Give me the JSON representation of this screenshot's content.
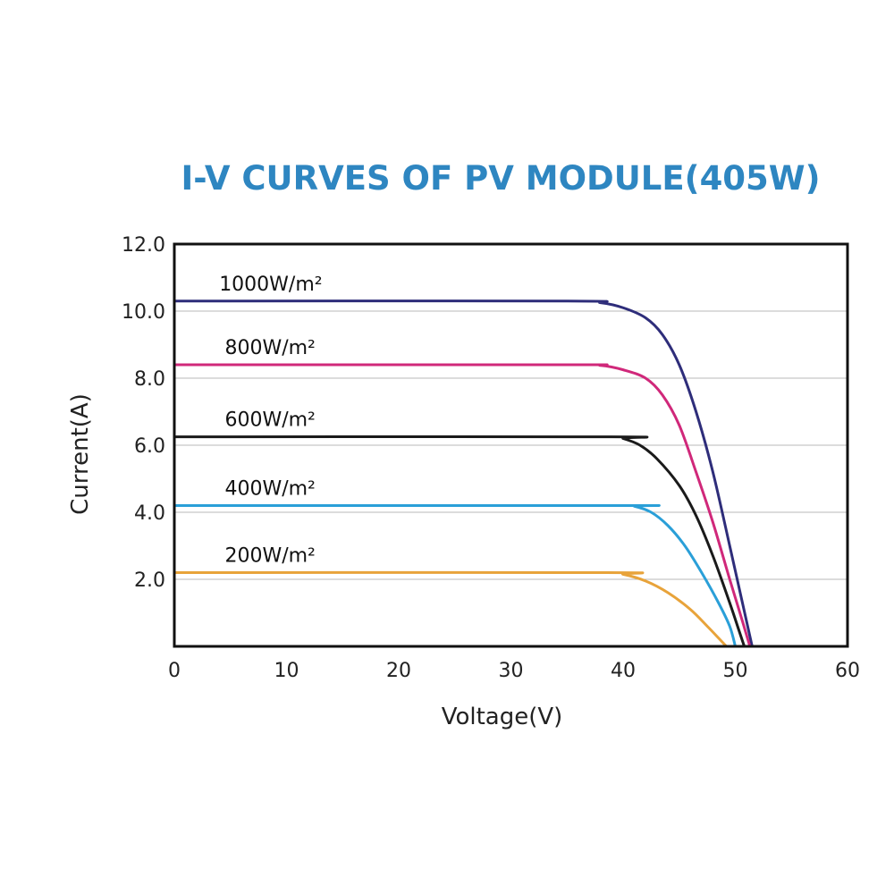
{
  "chart_data": {
    "type": "line",
    "title": "I-V CURVES OF PV MODULE(405W)",
    "xlabel": "Voltage(V)",
    "ylabel": "Current(A)",
    "xlim": [
      0,
      60
    ],
    "ylim": [
      0,
      12
    ],
    "x_ticks": [
      "0",
      "10",
      "20",
      "30",
      "40",
      "50",
      "60"
    ],
    "y_ticks": [
      "2.0",
      "4.0",
      "6.0",
      "8.0",
      "10.0",
      "12.0"
    ],
    "grid": "horizontal",
    "series": [
      {
        "name": "1000W/m²",
        "color": "#2e2d7a",
        "points": [
          [
            0,
            10.3
          ],
          [
            35,
            10.3
          ],
          [
            38,
            10.25
          ],
          [
            40,
            10.1
          ],
          [
            42,
            9.8
          ],
          [
            43.5,
            9.3
          ],
          [
            45,
            8.4
          ],
          [
            46.5,
            7.0
          ],
          [
            48,
            5.2
          ],
          [
            49.5,
            3.0
          ],
          [
            50.5,
            1.5
          ],
          [
            51.5,
            0
          ]
        ]
      },
      {
        "name": "800W/m²",
        "color": "#d0287a",
        "points": [
          [
            0,
            8.4
          ],
          [
            35,
            8.4
          ],
          [
            38,
            8.38
          ],
          [
            40,
            8.25
          ],
          [
            42,
            8.0
          ],
          [
            43.5,
            7.5
          ],
          [
            45,
            6.6
          ],
          [
            46.5,
            5.2
          ],
          [
            48,
            3.7
          ],
          [
            49.5,
            2.0
          ],
          [
            50.5,
            0.9
          ],
          [
            51.3,
            0
          ]
        ]
      },
      {
        "name": "600W/m²",
        "color": "#1a1a1a",
        "points": [
          [
            0,
            6.25
          ],
          [
            39,
            6.25
          ],
          [
            40,
            6.2
          ],
          [
            41.5,
            6.0
          ],
          [
            43,
            5.6
          ],
          [
            45,
            4.8
          ],
          [
            46.5,
            3.9
          ],
          [
            48,
            2.7
          ],
          [
            49.5,
            1.3
          ],
          [
            50.3,
            0.5
          ],
          [
            50.8,
            0
          ]
        ]
      },
      {
        "name": "400W/m²",
        "color": "#2a9fd8",
        "points": [
          [
            0,
            4.2
          ],
          [
            40,
            4.2
          ],
          [
            41,
            4.18
          ],
          [
            42.5,
            4.0
          ],
          [
            44,
            3.6
          ],
          [
            45.5,
            3.0
          ],
          [
            47,
            2.2
          ],
          [
            48.5,
            1.3
          ],
          [
            49.5,
            0.6
          ],
          [
            50,
            0
          ]
        ]
      },
      {
        "name": "200W/m²",
        "color": "#e8a33a",
        "points": [
          [
            0,
            2.2
          ],
          [
            38.5,
            2.2
          ],
          [
            40,
            2.15
          ],
          [
            42,
            1.95
          ],
          [
            44,
            1.6
          ],
          [
            46,
            1.1
          ],
          [
            47.5,
            0.6
          ],
          [
            48.5,
            0.25
          ],
          [
            49.2,
            0
          ]
        ]
      }
    ],
    "series_label_positions_x": 5
  }
}
